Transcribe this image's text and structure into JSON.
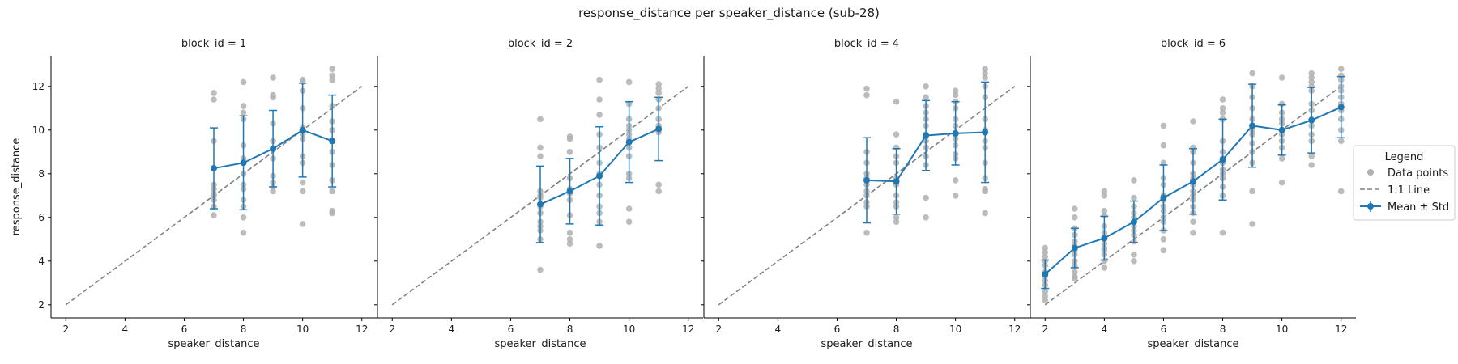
{
  "title": "response_distance per speaker_distance (sub-28)",
  "legend": {
    "title": "Legend",
    "placement": "right",
    "items": [
      "Data points",
      "1:1 Line",
      "Mean ± Std"
    ]
  },
  "colors": {
    "points": "#b0b0b0",
    "mean": "#1f77b4",
    "identity": "#808080"
  },
  "chart_data": [
    {
      "type": "scatter",
      "title": "block_id = 1",
      "xlabel": "speaker_distance",
      "ylabel": "response_distance",
      "xlim": [
        1.5,
        12.5
      ],
      "ylim": [
        1.4,
        13.4
      ],
      "xticks": [
        2,
        4,
        6,
        8,
        10,
        12
      ],
      "yticks": [
        2,
        4,
        6,
        8,
        10,
        12
      ],
      "grid": false,
      "identity_line": [
        [
          2,
          2
        ],
        [
          12,
          12
        ]
      ],
      "points": {
        "7": [
          11.7,
          11.4,
          9.5,
          7.5,
          7.3,
          7.1,
          7.0,
          6.8,
          6.5,
          6.1
        ],
        "8": [
          12.2,
          11.1,
          10.8,
          10.5,
          9.3,
          8.7,
          8.0,
          7.5,
          7.3,
          6.8,
          6.5,
          6.0,
          5.3
        ],
        "9": [
          12.4,
          11.6,
          11.5,
          10.3,
          9.5,
          9.1,
          8.7,
          7.9,
          7.6,
          7.4,
          7.2
        ],
        "10": [
          12.3,
          12.2,
          11.8,
          11.0,
          10.1,
          9.8,
          9.6,
          8.8,
          8.5,
          7.6,
          7.2,
          5.7
        ],
        "11": [
          12.8,
          12.5,
          12.3,
          11.1,
          10.4,
          10.0,
          9.5,
          9.0,
          8.4,
          7.7,
          7.2,
          6.3,
          6.2
        ]
      },
      "mean": {
        "x": [
          7,
          8,
          9,
          10,
          11
        ],
        "y": [
          8.25,
          8.5,
          9.15,
          10.0,
          9.5
        ],
        "std": [
          1.85,
          2.15,
          1.75,
          2.15,
          2.1
        ]
      }
    },
    {
      "type": "scatter",
      "title": "block_id = 2",
      "xlabel": "speaker_distance",
      "ylabel": "",
      "xlim": [
        1.5,
        12.5
      ],
      "ylim": [
        1.4,
        13.4
      ],
      "xticks": [
        2,
        4,
        6,
        8,
        10,
        12
      ],
      "yticks": [
        2,
        4,
        6,
        8,
        10,
        12
      ],
      "grid": false,
      "identity_line": [
        [
          2,
          2
        ],
        [
          12,
          12
        ]
      ],
      "points": {
        "7": [
          10.5,
          9.2,
          8.8,
          7.2,
          7.0,
          6.9,
          6.5,
          6.2,
          5.8,
          5.6,
          5.4,
          5.0,
          3.6
        ],
        "8": [
          9.7,
          9.6,
          9.0,
          7.8,
          7.3,
          7.1,
          6.8,
          6.1,
          5.3,
          5.0,
          4.8
        ],
        "9": [
          12.3,
          11.4,
          10.7,
          9.8,
          9.2,
          8.5,
          8.0,
          7.5,
          7.0,
          6.5,
          6.2,
          5.8,
          4.7
        ],
        "10": [
          12.2,
          11.2,
          10.5,
          10.2,
          10.0,
          9.8,
          9.6,
          9.2,
          8.8,
          8.0,
          7.8,
          6.4,
          5.8
        ],
        "11": [
          12.1,
          11.9,
          11.7,
          11.4,
          11.0,
          10.5,
          10.2,
          9.9,
          7.5,
          7.2
        ]
      },
      "mean": {
        "x": [
          7,
          8,
          9,
          10,
          11
        ],
        "y": [
          6.6,
          7.2,
          7.9,
          9.45,
          10.05
        ],
        "std": [
          1.75,
          1.5,
          2.25,
          1.85,
          1.45
        ]
      }
    },
    {
      "type": "scatter",
      "title": "block_id = 4",
      "xlabel": "speaker_distance",
      "ylabel": "",
      "xlim": [
        1.5,
        12.5
      ],
      "ylim": [
        1.4,
        13.4
      ],
      "xticks": [
        2,
        4,
        6,
        8,
        10,
        12
      ],
      "yticks": [
        2,
        4,
        6,
        8,
        10,
        12
      ],
      "grid": false,
      "identity_line": [
        [
          2,
          2
        ],
        [
          12,
          12
        ]
      ],
      "points": {
        "7": [
          11.9,
          11.6,
          9.0,
          8.5,
          8.0,
          7.8,
          7.5,
          7.2,
          7.0,
          6.7,
          6.5,
          5.3
        ],
        "8": [
          11.3,
          9.8,
          9.2,
          8.8,
          8.5,
          7.8,
          7.5,
          7.0,
          6.7,
          6.5,
          6.0,
          5.8
        ],
        "9": [
          12.0,
          11.5,
          11.1,
          10.8,
          10.5,
          10.2,
          9.8,
          9.5,
          9.2,
          8.8,
          8.4,
          6.9,
          6.0
        ],
        "10": [
          11.8,
          11.6,
          11.3,
          11.0,
          10.5,
          10.2,
          9.8,
          9.6,
          9.3,
          8.9,
          8.7,
          7.7,
          7.0
        ],
        "11": [
          12.8,
          12.6,
          12.4,
          12.0,
          11.5,
          10.5,
          10.0,
          9.5,
          9.2,
          8.5,
          7.8,
          7.3,
          7.2,
          6.2
        ]
      },
      "mean": {
        "x": [
          7,
          8,
          9,
          10,
          11
        ],
        "y": [
          7.7,
          7.65,
          9.75,
          9.85,
          9.9
        ],
        "std": [
          1.95,
          1.5,
          1.6,
          1.45,
          2.3
        ]
      }
    },
    {
      "type": "scatter",
      "title": "block_id = 6",
      "xlabel": "speaker_distance",
      "ylabel": "",
      "xlim": [
        1.5,
        12.5
      ],
      "ylim": [
        1.4,
        13.4
      ],
      "xticks": [
        2,
        4,
        6,
        8,
        10,
        12
      ],
      "yticks": [
        2,
        4,
        6,
        8,
        10,
        12
      ],
      "grid": false,
      "identity_line": [
        [
          2,
          2
        ],
        [
          12,
          12
        ]
      ],
      "points": {
        "2": [
          4.6,
          4.4,
          4.2,
          4.0,
          3.8,
          3.5,
          3.3,
          3.1,
          2.9,
          2.6,
          2.4,
          2.2
        ],
        "3": [
          6.4,
          6.0,
          5.5,
          5.2,
          4.9,
          4.7,
          4.5,
          4.3,
          4.0,
          3.8,
          3.5,
          3.3,
          3.2
        ],
        "4": [
          7.2,
          7.0,
          6.3,
          6.1,
          5.6,
          5.3,
          5.0,
          4.8,
          4.6,
          4.5,
          4.3,
          4.0,
          3.7
        ],
        "5": [
          7.7,
          6.9,
          6.5,
          6.2,
          6.0,
          5.8,
          5.6,
          5.4,
          5.2,
          4.9,
          4.3,
          4.0
        ],
        "6": [
          10.2,
          9.3,
          8.5,
          7.8,
          7.5,
          7.0,
          6.8,
          6.5,
          6.3,
          6.0,
          5.8,
          5.4,
          5.0,
          4.5
        ],
        "7": [
          10.4,
          9.2,
          9.0,
          8.5,
          8.0,
          7.8,
          7.5,
          7.2,
          7.0,
          6.8,
          6.5,
          6.2,
          5.8,
          5.3
        ],
        "8": [
          11.4,
          11.0,
          10.8,
          10.5,
          9.5,
          9.0,
          8.7,
          8.5,
          8.2,
          8.0,
          7.8,
          7.4,
          7.0,
          5.3
        ],
        "9": [
          12.6,
          12.0,
          11.5,
          11.0,
          10.5,
          10.2,
          10.0,
          9.8,
          9.4,
          9.0,
          8.5,
          7.2,
          5.7
        ],
        "10": [
          12.4,
          11.2,
          10.8,
          10.5,
          10.3,
          10.0,
          9.8,
          9.5,
          9.2,
          8.7,
          7.6
        ],
        "11": [
          12.6,
          12.4,
          12.2,
          12.0,
          11.8,
          11.2,
          10.9,
          10.5,
          10.2,
          9.8,
          9.5,
          8.8,
          8.4
        ],
        "12": [
          12.8,
          12.5,
          12.3,
          12.0,
          11.8,
          11.5,
          11.2,
          10.9,
          10.5,
          10.0,
          9.5,
          7.2
        ]
      },
      "mean": {
        "x": [
          2,
          3,
          4,
          5,
          6,
          7,
          8,
          9,
          10,
          11,
          12
        ],
        "y": [
          3.4,
          4.6,
          5.05,
          5.8,
          6.9,
          7.65,
          8.65,
          10.2,
          10.0,
          10.45,
          11.05
        ],
        "std": [
          0.65,
          0.9,
          1.0,
          0.95,
          1.5,
          1.5,
          1.85,
          1.9,
          1.15,
          1.5,
          1.4
        ]
      }
    }
  ]
}
